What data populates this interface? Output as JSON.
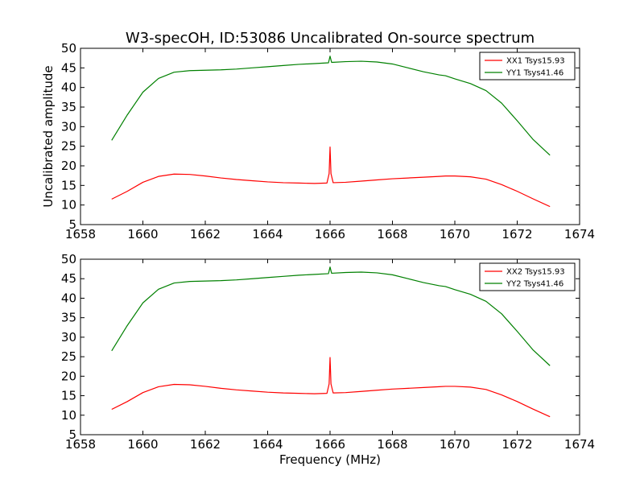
{
  "figure": {
    "title": "W3-specOH, ID:53086 Uncalibrated On-source spectrum",
    "background": "#ffffff"
  },
  "chart_data": [
    {
      "type": "line",
      "title": "",
      "xlabel": "",
      "ylabel": "Uncalibrated amplitude",
      "xlim": [
        1658,
        1674
      ],
      "ylim": [
        5,
        50
      ],
      "xticks": [
        1658,
        1660,
        1662,
        1664,
        1666,
        1668,
        1670,
        1672,
        1674
      ],
      "yticks": [
        5,
        10,
        15,
        20,
        25,
        30,
        35,
        40,
        45,
        50
      ],
      "grid": false,
      "legend_position": "top-right",
      "series": [
        {
          "name": "XX1 Tsys15.93",
          "color": "#ff0000",
          "x": [
            1659.0,
            1659.5,
            1660.0,
            1660.5,
            1661.0,
            1661.5,
            1662.0,
            1662.5,
            1663.0,
            1663.5,
            1664.0,
            1664.5,
            1665.0,
            1665.5,
            1665.9,
            1665.97,
            1666.0,
            1666.03,
            1666.1,
            1666.5,
            1667.0,
            1667.5,
            1668.0,
            1668.5,
            1669.0,
            1669.5,
            1669.7,
            1670.0,
            1670.5,
            1671.0,
            1671.5,
            1672.0,
            1672.5,
            1673.05
          ],
          "y": [
            11.5,
            13.5,
            15.8,
            17.3,
            17.9,
            17.8,
            17.4,
            16.9,
            16.5,
            16.2,
            15.9,
            15.7,
            15.6,
            15.5,
            15.6,
            18.0,
            24.8,
            18.0,
            15.7,
            15.8,
            16.1,
            16.4,
            16.7,
            16.9,
            17.1,
            17.3,
            17.4,
            17.4,
            17.2,
            16.6,
            15.2,
            13.5,
            11.6,
            9.6
          ]
        },
        {
          "name": "YY1 Tsys41.46",
          "color": "#008000",
          "x": [
            1659.0,
            1659.5,
            1660.0,
            1660.5,
            1661.0,
            1661.5,
            1662.0,
            1662.5,
            1663.0,
            1663.5,
            1664.0,
            1664.5,
            1665.0,
            1665.5,
            1665.95,
            1666.0,
            1666.05,
            1666.5,
            1667.0,
            1667.5,
            1668.0,
            1668.5,
            1669.0,
            1669.5,
            1669.7,
            1670.0,
            1670.5,
            1671.0,
            1671.5,
            1672.0,
            1672.5,
            1673.05
          ],
          "y": [
            26.5,
            33.0,
            38.8,
            42.3,
            43.9,
            44.3,
            44.4,
            44.5,
            44.7,
            45.0,
            45.3,
            45.6,
            45.9,
            46.1,
            46.3,
            48.0,
            46.4,
            46.6,
            46.7,
            46.5,
            46.0,
            45.0,
            44.0,
            43.2,
            43.0,
            42.2,
            41.0,
            39.2,
            36.0,
            31.5,
            26.8,
            22.7
          ]
        }
      ]
    },
    {
      "type": "line",
      "title": "",
      "xlabel": "Frequency (MHz)",
      "ylabel": "",
      "xlim": [
        1658,
        1674
      ],
      "ylim": [
        5,
        50
      ],
      "xticks": [
        1658,
        1660,
        1662,
        1664,
        1666,
        1668,
        1670,
        1672,
        1674
      ],
      "yticks": [
        5,
        10,
        15,
        20,
        25,
        30,
        35,
        40,
        45,
        50
      ],
      "grid": false,
      "legend_position": "top-right",
      "series": [
        {
          "name": "XX2 Tsys15.93",
          "color": "#ff0000",
          "x": [
            1659.0,
            1659.5,
            1660.0,
            1660.5,
            1661.0,
            1661.5,
            1662.0,
            1662.5,
            1663.0,
            1663.5,
            1664.0,
            1664.5,
            1665.0,
            1665.5,
            1665.9,
            1665.97,
            1666.0,
            1666.03,
            1666.1,
            1666.5,
            1667.0,
            1667.5,
            1668.0,
            1668.5,
            1669.0,
            1669.5,
            1669.7,
            1670.0,
            1670.5,
            1671.0,
            1671.5,
            1672.0,
            1672.5,
            1673.05
          ],
          "y": [
            11.5,
            13.5,
            15.8,
            17.3,
            17.9,
            17.8,
            17.4,
            16.9,
            16.5,
            16.2,
            15.9,
            15.7,
            15.6,
            15.5,
            15.6,
            18.0,
            24.8,
            18.0,
            15.7,
            15.8,
            16.1,
            16.4,
            16.7,
            16.9,
            17.1,
            17.3,
            17.4,
            17.4,
            17.2,
            16.6,
            15.2,
            13.5,
            11.6,
            9.6
          ]
        },
        {
          "name": "YY2 Tsys41.46",
          "color": "#008000",
          "x": [
            1659.0,
            1659.5,
            1660.0,
            1660.5,
            1661.0,
            1661.5,
            1662.0,
            1662.5,
            1663.0,
            1663.5,
            1664.0,
            1664.5,
            1665.0,
            1665.5,
            1665.95,
            1666.0,
            1666.05,
            1666.5,
            1667.0,
            1667.5,
            1668.0,
            1668.5,
            1669.0,
            1669.5,
            1669.7,
            1670.0,
            1670.5,
            1671.0,
            1671.5,
            1672.0,
            1672.5,
            1673.05
          ],
          "y": [
            26.5,
            33.0,
            38.8,
            42.3,
            43.9,
            44.3,
            44.4,
            44.5,
            44.7,
            45.0,
            45.3,
            45.6,
            45.9,
            46.1,
            46.3,
            48.0,
            46.4,
            46.6,
            46.7,
            46.5,
            46.0,
            45.0,
            44.0,
            43.2,
            43.0,
            42.2,
            41.0,
            39.2,
            36.0,
            31.5,
            26.8,
            22.7
          ]
        }
      ]
    }
  ]
}
